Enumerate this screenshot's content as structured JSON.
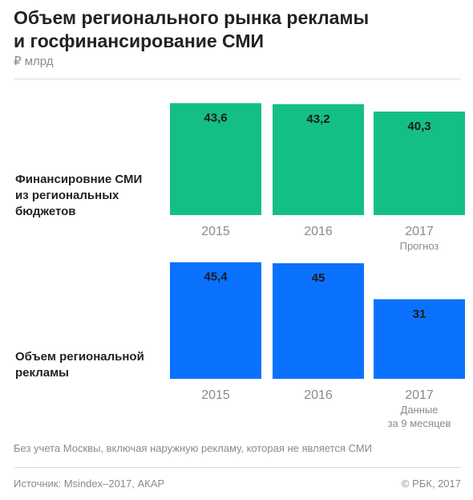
{
  "header": {
    "title_line1": "Объем регионального рынка рекламы",
    "title_line2": "и госфинансирование СМИ",
    "unit": "₽ млрд"
  },
  "colors": {
    "panel1": "#14bf87",
    "panel2": "#0a72ff"
  },
  "chart_data": [
    {
      "type": "bar",
      "label_line1": "Финансировние СМИ",
      "label_line2": "из региональных",
      "label_line3": "бюджетов",
      "categories": [
        "2015",
        "2016",
        "2017"
      ],
      "values": [
        43.6,
        43.2,
        40.3
      ],
      "value_labels": [
        "43,6",
        "43,2",
        "40,3"
      ],
      "category_notes": [
        "",
        "",
        "Прогноз"
      ]
    },
    {
      "type": "bar",
      "label_line1": "Объем региональной",
      "label_line2": "рекламы",
      "categories": [
        "2015",
        "2016",
        "2017"
      ],
      "values": [
        45.4,
        45,
        31
      ],
      "value_labels": [
        "45,4",
        "45",
        "31"
      ],
      "category_notes": [
        "",
        "",
        "Данные\nза 9 месяцев"
      ]
    }
  ],
  "footer": {
    "note": "Без учета Москвы, включая наружную рекламу, которая не является СМИ",
    "source": "Источник: Msindex–2017, АКАР",
    "copyright": "© РБК, 2017"
  }
}
